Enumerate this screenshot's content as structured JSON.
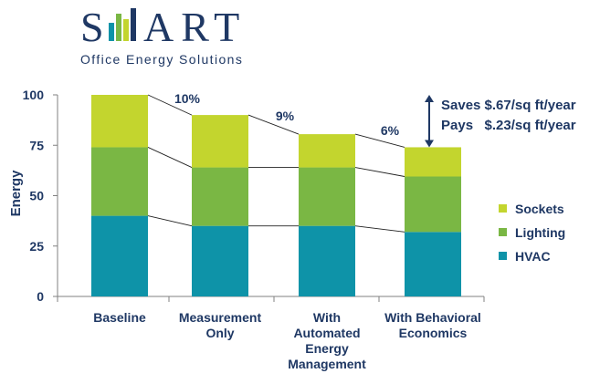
{
  "logo": {
    "wordmark": "SMART",
    "tagline": "Office Energy Solutions",
    "navy": "#1f3864",
    "bar_colors": [
      "#0e93a8",
      "#7ab744",
      "#c3d52e",
      "#1f3864"
    ]
  },
  "chart_data": {
    "type": "bar",
    "stacked": true,
    "categories": [
      "Baseline",
      "Measurement Only",
      "With Automated Energy Management",
      "With Behavioral Economics"
    ],
    "category_lines": [
      [
        "Baseline"
      ],
      [
        "Measurement",
        "Only"
      ],
      [
        "With",
        "Automated",
        "Energy",
        "Management"
      ],
      [
        "With Behavioral",
        "Economics"
      ]
    ],
    "series": [
      {
        "name": "HVAC",
        "color": "#0e93a8",
        "values": [
          40,
          35,
          35,
          32
        ]
      },
      {
        "name": "Lighting",
        "color": "#7ab744",
        "values": [
          34,
          29,
          29,
          27.5
        ]
      },
      {
        "name": "Sockets",
        "color": "#c3d52e",
        "values": [
          26,
          26,
          16.5,
          14.5
        ]
      }
    ],
    "xlabel": "",
    "ylabel": "Energy",
    "ylim": [
      0,
      100
    ],
    "yticks": [
      0,
      25,
      50,
      75,
      100
    ],
    "legend": "right",
    "grid": false,
    "reduction_labels": [
      "10%",
      "9%",
      "6%"
    ],
    "annotation": {
      "lines": [
        "Saves $.67/sq ft/year",
        "Pays   $.23/sq ft/year"
      ],
      "arrow_from": 100,
      "arrow_to": 74
    }
  }
}
